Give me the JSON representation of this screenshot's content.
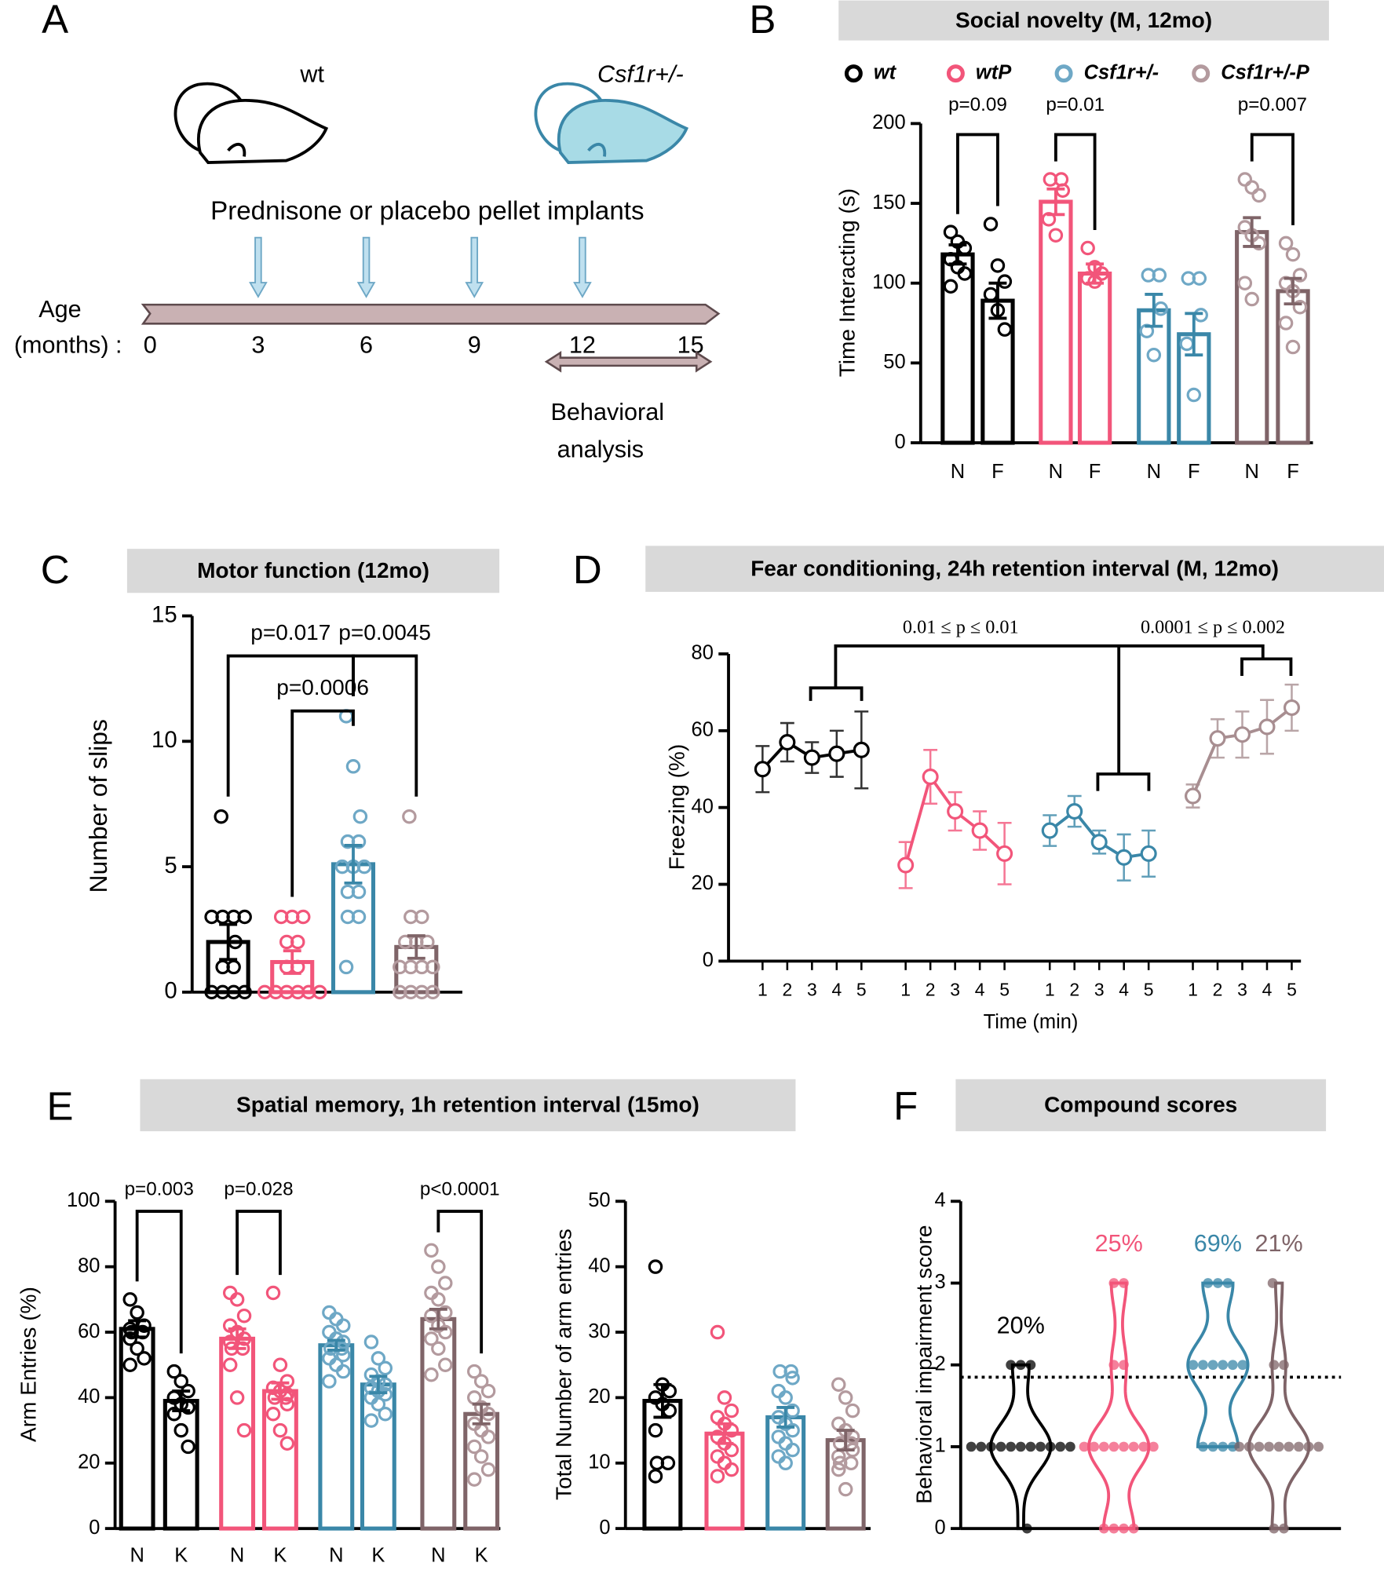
{
  "panel_labels": [
    "A",
    "B",
    "C",
    "D",
    "E",
    "F"
  ],
  "diagram": {
    "mice": [
      "wt",
      "Csf1r+/-"
    ],
    "implant_text": "Prednisone or placebo pellet implants",
    "age_label": "Age",
    "months_label": "(months) :",
    "ages": [
      0,
      3,
      6,
      9,
      12,
      15
    ],
    "implants": [
      3,
      6,
      9,
      12
    ],
    "behavior": {
      "range": [
        11,
        15
      ],
      "label": [
        "Behavioral",
        "analysis"
      ]
    }
  },
  "chart_data": [
    {
      "type": "bar",
      "title": "Social novelty (M, 12mo)",
      "ylabel": "Time Interacting (s)",
      "legend": true,
      "categories": [
        "N",
        "F"
      ],
      "ylim": [
        0,
        200
      ],
      "yticks": [
        0,
        50,
        100,
        150,
        200
      ],
      "series": [
        {
          "name": "wt",
          "color": "#000000",
          "point_color": "#000000",
          "values": [
            118,
            89
          ],
          "errors": [
            6,
            11
          ],
          "p_value": "p=0.09",
          "points": [
            [
              132,
              126,
              122,
              115,
              110,
              106,
              98
            ],
            [
              137,
              111,
              101,
              93,
              83,
              71
            ]
          ]
        },
        {
          "name": "wtP",
          "color": "#f2557a",
          "point_color": "#f2557a",
          "values": [
            151,
            106
          ],
          "errors": [
            8,
            6
          ],
          "p_value": "p=0.01",
          "points": [
            [
              165,
              165,
              158,
              140,
              130
            ],
            [
              122,
              110,
              106,
              103,
              101
            ]
          ]
        },
        {
          "name": "Csf1r+/-",
          "color": "#3a87a8",
          "point_color": "#6ea8c6",
          "values": [
            83,
            68
          ],
          "errors": [
            10,
            13
          ],
          "p_value": null,
          "points": [
            [
              105,
              105,
              84,
              70,
              55
            ],
            [
              103,
              103,
              80,
              62,
              30
            ]
          ]
        },
        {
          "name": "Csf1r+/-P",
          "color": "#7f6468",
          "point_color": "#b39a9e",
          "values": [
            132,
            95
          ],
          "errors": [
            9,
            8
          ],
          "p_value": "p=0.007",
          "points": [
            [
              165,
              160,
              155,
              135,
              130,
              125,
              100,
              90
            ],
            [
              125,
              118,
              105,
              100,
              95,
              85,
              75,
              60
            ]
          ]
        }
      ]
    },
    {
      "type": "bar",
      "title": "Motor function (12mo)",
      "ylabel": "Number of slips",
      "ylim": [
        0,
        15
      ],
      "yticks": [
        0,
        5,
        10,
        15
      ],
      "series": [
        {
          "color": "#000000",
          "point_color": "#000000",
          "values": [
            2.0
          ],
          "errors": [
            0.7
          ],
          "points": [
            [
              7,
              3,
              3,
              3,
              3,
              2,
              1,
              1,
              0,
              0,
              0,
              0
            ]
          ]
        },
        {
          "color": "#f2557a",
          "point_color": "#f2557a",
          "values": [
            1.2
          ],
          "errors": [
            0.45
          ],
          "points": [
            [
              3,
              3,
              3,
              2,
              2,
              1,
              1,
              0,
              0,
              0,
              0,
              0,
              0
            ]
          ]
        },
        {
          "color": "#3a87a8",
          "point_color": "#6ea8c6",
          "values": [
            5.1
          ],
          "errors": [
            0.75
          ],
          "points": [
            [
              11,
              9,
              7,
              6,
              6,
              5,
              5,
              5,
              4,
              4,
              3,
              3,
              1
            ]
          ]
        },
        {
          "color": "#7f6468",
          "point_color": "#b39a9e",
          "values": [
            1.8
          ],
          "errors": [
            0.45
          ],
          "points": [
            [
              7,
              3,
              3,
              2,
              2,
              2,
              1,
              1,
              1,
              1,
              0,
              0,
              0,
              0
            ]
          ]
        }
      ],
      "comparisons": [
        {
          "pair": [
            0,
            2
          ],
          "label": "p=0.017"
        },
        {
          "pair": [
            1,
            2
          ],
          "label": "p=0.0006"
        },
        {
          "pair": [
            2,
            3
          ],
          "label": "p=0.0045"
        }
      ]
    },
    {
      "type": "line",
      "title": "Fear conditioning,  24h retention interval (M, 12mo)",
      "xlabel": "Time (min)",
      "ylabel": "Freezing (%)",
      "x": [
        1,
        2,
        3,
        4,
        5
      ],
      "ylim": [
        0,
        80
      ],
      "yticks": [
        0,
        20,
        40,
        60,
        80
      ],
      "annotations": [
        "0.01 ≤ p ≤ 0.01",
        "0.0001 ≤ p ≤ 0.002"
      ],
      "series": [
        {
          "color": "#000000",
          "values": [
            50,
            57,
            53,
            54,
            55
          ],
          "errors": [
            6,
            5,
            4,
            6,
            10
          ]
        },
        {
          "color": "#f2557a",
          "values": [
            25,
            48,
            39,
            34,
            28
          ],
          "errors": [
            6,
            7,
            5,
            5,
            8
          ]
        },
        {
          "color": "#3a87a8",
          "values": [
            34,
            39,
            31,
            27,
            28
          ],
          "errors": [
            4,
            4,
            3,
            6,
            6
          ]
        },
        {
          "color": "#a88e91",
          "values": [
            43,
            58,
            59,
            61,
            66
          ],
          "errors": [
            3,
            5,
            6,
            7,
            6
          ]
        }
      ]
    },
    {
      "type": "bar",
      "title": "Spatial memory,  1h retention interval (15mo)",
      "ylabel": "Arm Entries (%)",
      "categories": [
        "N",
        "K"
      ],
      "ylim": [
        0,
        100
      ],
      "yticks": [
        0,
        20,
        40,
        60,
        80,
        100
      ],
      "series": [
        {
          "color": "#000000",
          "point_color": "#000000",
          "values": [
            61,
            39
          ],
          "errors": [
            2.5,
            3
          ],
          "p_value": "p=0.003",
          "points": [
            [
              70,
              66,
              62,
              61,
              60,
              60,
              58,
              55,
              52,
              50
            ],
            [
              48,
              45,
              42,
              40,
              38,
              37,
              35,
              30,
              25
            ]
          ]
        },
        {
          "color": "#f2557a",
          "point_color": "#f2557a",
          "values": [
            58,
            42
          ],
          "errors": [
            3,
            2.5
          ],
          "p_value": "p=0.028",
          "points": [
            [
              72,
              70,
              65,
              62,
              60,
              58,
              57,
              55,
              55,
              50,
              40,
              30
            ],
            [
              72,
              50,
              45,
              43,
              42,
              41,
              40,
              40,
              38,
              35,
              30,
              26
            ]
          ]
        },
        {
          "color": "#3a87a8",
          "point_color": "#6ea8c6",
          "values": [
            56,
            44
          ],
          "errors": [
            1.5,
            2.5
          ],
          "p_value": null,
          "points": [
            [
              66,
              64,
              62,
              60,
              58,
              57,
              55,
              55,
              53,
              52,
              50,
              48,
              45
            ],
            [
              57,
              52,
              49,
              47,
              45,
              44,
              43,
              42,
              41,
              40,
              38,
              35,
              33
            ]
          ]
        },
        {
          "color": "#7f6468",
          "point_color": "#b39a9e",
          "values": [
            64,
            35
          ],
          "errors": [
            3,
            3
          ],
          "p_value": "p<0.0001",
          "points": [
            [
              85,
              80,
              75,
              72,
              70,
              66,
              65,
              62,
              60,
              58,
              55,
              50,
              47
            ],
            [
              48,
              45,
              42,
              40,
              37,
              35,
              32,
              30,
              28,
              25,
              22,
              18,
              15
            ]
          ]
        }
      ]
    },
    {
      "type": "bar",
      "ylabel": "Total Number of arm entries",
      "ylim": [
        0,
        50
      ],
      "yticks": [
        0,
        10,
        20,
        30,
        40,
        50
      ],
      "series": [
        {
          "color": "#000000",
          "point_color": "#000000",
          "values": [
            19.5
          ],
          "errors": [
            2.5
          ],
          "points": [
            [
              40,
              22,
              21,
              20,
              19,
              18,
              15,
              10,
              10,
              8
            ]
          ]
        },
        {
          "color": "#f2557a",
          "point_color": "#f2557a",
          "values": [
            14.5
          ],
          "errors": [
            1.5
          ],
          "points": [
            [
              30,
              20,
              18,
              17,
              16,
              15,
              14,
              13,
              12,
              11,
              10,
              9,
              8
            ]
          ]
        },
        {
          "color": "#3a87a8",
          "point_color": "#6ea8c6",
          "values": [
            17
          ],
          "errors": [
            1.5
          ],
          "points": [
            [
              24,
              24,
              23,
              21,
              20,
              18,
              17,
              16,
              15,
              14,
              13,
              12,
              11,
              10
            ]
          ]
        },
        {
          "color": "#7f6468",
          "point_color": "#b39a9e",
          "values": [
            13.5
          ],
          "errors": [
            1.5
          ],
          "points": [
            [
              22,
              20,
              18,
              16,
              15,
              14,
              13,
              13,
              12,
              11,
              10,
              10,
              9,
              6
            ]
          ]
        }
      ]
    },
    {
      "type": "violin",
      "title": "Compound scores",
      "ylabel": "Behavioral impairment score",
      "ylim": [
        0,
        4
      ],
      "yticks": [
        0,
        1,
        2,
        3,
        4
      ],
      "threshold": 1.85,
      "series": [
        {
          "color": "#000000",
          "label": "20%",
          "points": [
            2,
            2,
            2,
            1,
            1,
            1,
            1,
            1,
            1,
            1,
            1,
            1,
            1,
            1,
            0
          ]
        },
        {
          "color": "#f2557a",
          "label": "25%",
          "points": [
            3,
            3,
            2,
            2,
            1,
            1,
            1,
            1,
            1,
            1,
            1,
            1,
            0,
            0,
            0,
            0
          ]
        },
        {
          "color": "#3a87a8",
          "label": "69%",
          "points": [
            3,
            3,
            3,
            2,
            2,
            2,
            2,
            2,
            2,
            1,
            1,
            1,
            1
          ]
        },
        {
          "color": "#7f6468",
          "label": "21%",
          "points": [
            3,
            2,
            2,
            1,
            1,
            1,
            1,
            1,
            1,
            1,
            1,
            1,
            0,
            0
          ]
        }
      ]
    }
  ]
}
